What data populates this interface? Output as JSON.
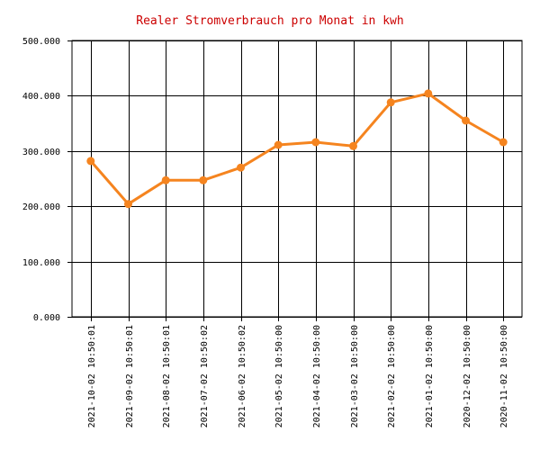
{
  "chart_data": {
    "type": "line",
    "title": "Realer Stromverbrauch pro Monat in kwh",
    "xlabel": "",
    "ylabel": "",
    "ylim": [
      0,
      500
    ],
    "y_ticks": [
      0,
      100,
      200,
      300,
      400,
      500
    ],
    "y_tick_labels": [
      "0.000",
      "100.000",
      "200.000",
      "300.000",
      "400.000",
      "500.000"
    ],
    "grid": true,
    "categories": [
      "2021-10-02 10:50:01",
      "2021-09-02 10:50:01",
      "2021-08-02 10:50:01",
      "2021-07-02 10:50:02",
      "2021-06-02 10:50:02",
      "2021-05-02 10:50:00",
      "2021-04-02 10:50:00",
      "2021-03-02 10:50:00",
      "2021-02-02 10:50:00",
      "2021-01-02 10:50:00",
      "2020-12-02 10:50:00",
      "2020-11-02 10:50:00"
    ],
    "series": [
      {
        "values": [
          282,
          204,
          247,
          247,
          270,
          311,
          316,
          309,
          388,
          404,
          355,
          316
        ],
        "color": "#f5841f"
      }
    ]
  }
}
